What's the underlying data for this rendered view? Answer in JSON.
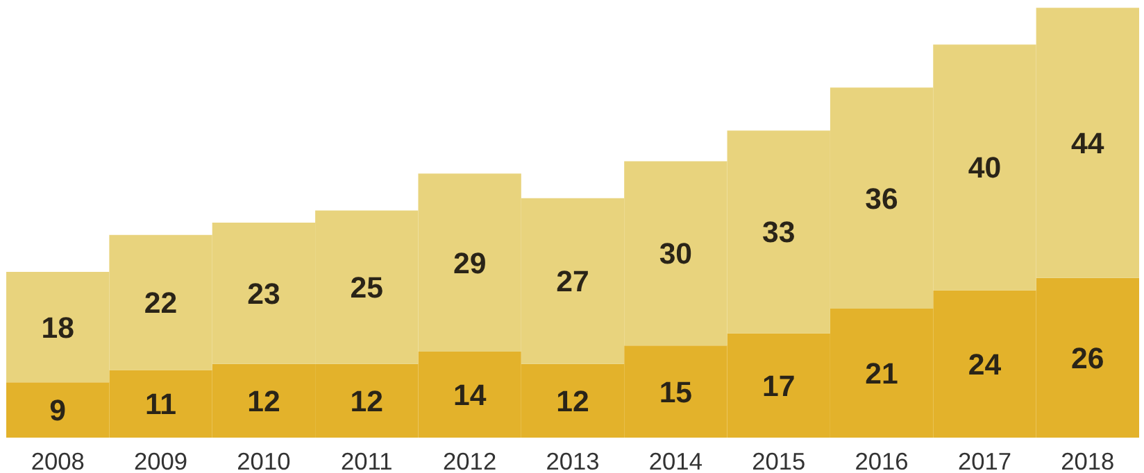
{
  "chart_data": {
    "type": "bar",
    "stacked": true,
    "data_labels": true,
    "categories": [
      "2008",
      "2009",
      "2010",
      "2011",
      "2012",
      "2013",
      "2014",
      "2015",
      "2016",
      "2017",
      "2018"
    ],
    "series": [
      {
        "color": "#e3b22b",
        "values": [
          9,
          11,
          12,
          12,
          14,
          12,
          15,
          17,
          21,
          24,
          26
        ]
      },
      {
        "color": "#e8d37d",
        "values": [
          18,
          22,
          23,
          25,
          29,
          27,
          30,
          33,
          36,
          40,
          44
        ]
      }
    ]
  }
}
